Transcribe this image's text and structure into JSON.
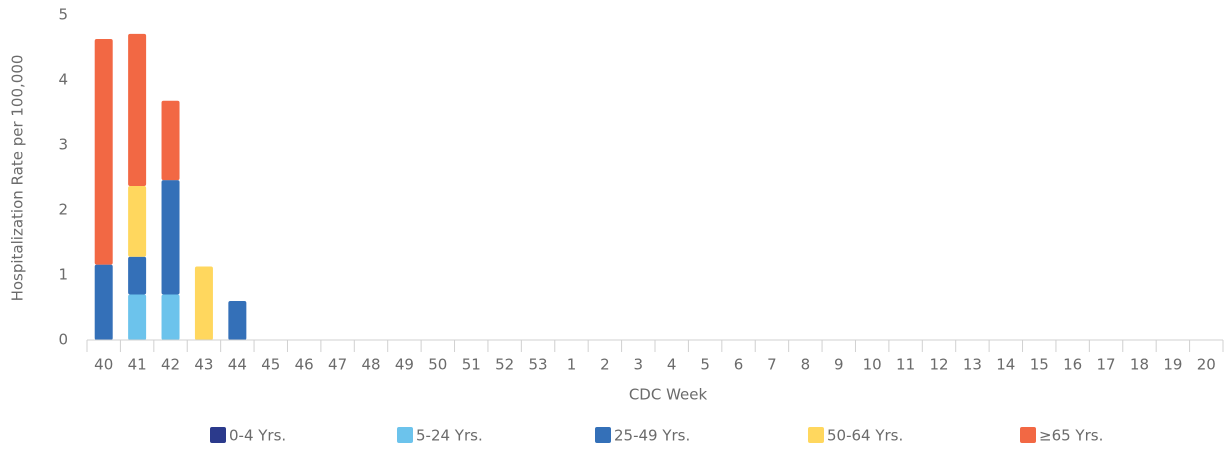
{
  "chart_data": {
    "type": "stacked_bar",
    "xlabel": "CDC Week",
    "ylabel": "Hospitalization Rate per 100,000",
    "categories": [
      "40",
      "41",
      "42",
      "43",
      "44",
      "45",
      "46",
      "47",
      "48",
      "49",
      "50",
      "51",
      "52",
      "53",
      "1",
      "2",
      "3",
      "4",
      "5",
      "6",
      "7",
      "8",
      "9",
      "10",
      "11",
      "12",
      "13",
      "14",
      "15",
      "16",
      "17",
      "18",
      "19",
      "20"
    ],
    "series": [
      {
        "name": "0-4 Yrs.",
        "color": "#2b3a8c",
        "values": [
          0,
          0,
          0,
          0,
          0,
          0,
          0,
          0,
          0,
          0,
          0,
          0,
          0,
          0,
          0,
          0,
          0,
          0,
          0,
          0,
          0,
          0,
          0,
          0,
          0,
          0,
          0,
          0,
          0,
          0,
          0,
          0,
          0,
          0
        ]
      },
      {
        "name": "5-24 Yrs.",
        "color": "#6cc3ec",
        "values": [
          0,
          0.7,
          0.7,
          0,
          0,
          0,
          0,
          0,
          0,
          0,
          0,
          0,
          0,
          0,
          0,
          0,
          0,
          0,
          0,
          0,
          0,
          0,
          0,
          0,
          0,
          0,
          0,
          0,
          0,
          0,
          0,
          0,
          0,
          0
        ]
      },
      {
        "name": "25-49 Yrs.",
        "color": "#3470b8",
        "values": [
          1.16,
          0.58,
          1.76,
          0,
          0.6,
          0,
          0,
          0,
          0,
          0,
          0,
          0,
          0,
          0,
          0,
          0,
          0,
          0,
          0,
          0,
          0,
          0,
          0,
          0,
          0,
          0,
          0,
          0,
          0,
          0,
          0,
          0,
          0,
          0
        ]
      },
      {
        "name": "50-64 Yrs.",
        "color": "#ffd75e",
        "values": [
          0,
          1.09,
          0,
          1.13,
          0,
          0,
          0,
          0,
          0,
          0,
          0,
          0,
          0,
          0,
          0,
          0,
          0,
          0,
          0,
          0,
          0,
          0,
          0,
          0,
          0,
          0,
          0,
          0,
          0,
          0,
          0,
          0,
          0,
          0
        ]
      },
      {
        "name": "≥65 Yrs.",
        "color": "#f26844",
        "values": [
          3.47,
          2.34,
          1.22,
          0,
          0,
          0,
          0,
          0,
          0,
          0,
          0,
          0,
          0,
          0,
          0,
          0,
          0,
          0,
          0,
          0,
          0,
          0,
          0,
          0,
          0,
          0,
          0,
          0,
          0,
          0,
          0,
          0,
          0,
          0
        ]
      }
    ],
    "ylim": [
      0,
      5
    ],
    "yticks": [
      0,
      1,
      2,
      3,
      4,
      5
    ],
    "grid": false
  }
}
